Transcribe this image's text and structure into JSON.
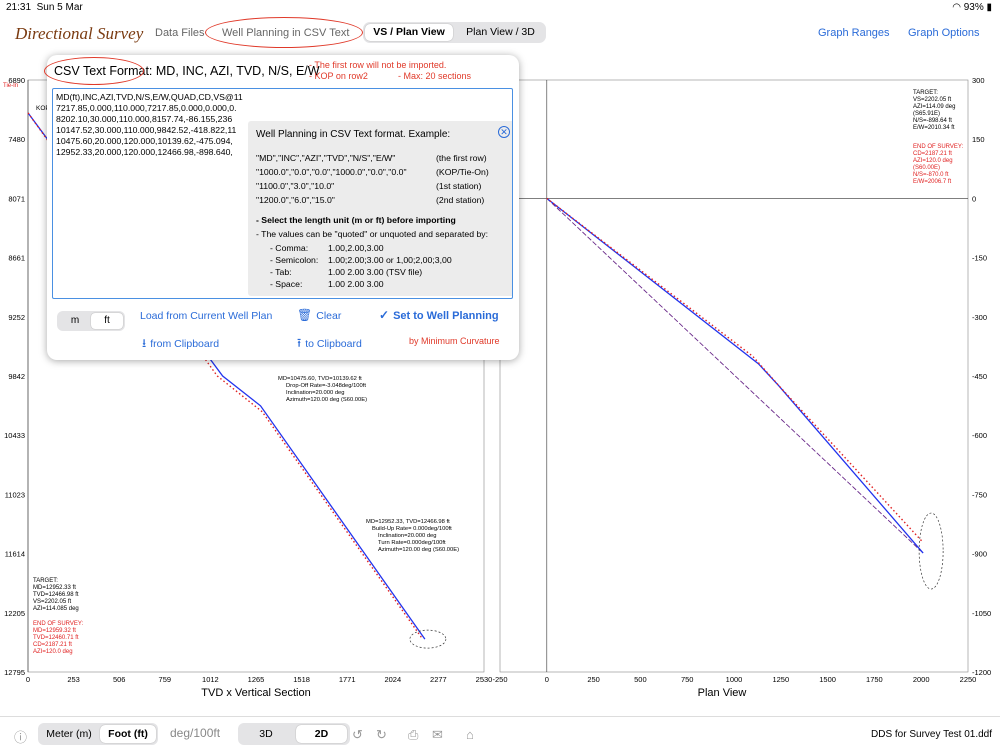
{
  "status": {
    "time": "21:31",
    "date": "Sun 5 Mar",
    "battery": "93%"
  },
  "header": {
    "app_title": "Directional Survey",
    "data_files": "Data Files",
    "well_planning_csv": "Well Planning in CSV Text",
    "vs_plan_view": "VS / Plan View",
    "plan_view_3d": "Plan View / 3D",
    "graph_ranges": "Graph Ranges",
    "graph_options": "Graph Options"
  },
  "popover": {
    "title": "CSV Text Format: MD, INC, AZI, TVD, N/S, E/W",
    "note1": "- The first row will not be imported.",
    "note2": "- KOP on row2",
    "note3": "- Max: 20 sections",
    "csv_lines": [
      "MD(ft),INC,AZI,TVD,N/S,E/W,QUAD,CD,VS@11",
      "7217.85,0.000,110.000,7217.85,0.000,0.000,0.",
      "8202.10,30.000,110.000,8157.74,-86.155,236",
      "10147.52,30.000,110.000,9842.52,-418.822,11",
      "10475.60,20.000,120.000,10139.62,-475.094,",
      "12952.33,20.000,120.000,12466.98,-898.640,"
    ],
    "example": {
      "title": "Well Planning in CSV Text format. Example:",
      "rows": [
        {
          "csv": "\"MD\",\"INC\",\"AZI\",\"TVD\",\"N/S\",\"E/W\"",
          "note": "(the first row)"
        },
        {
          "csv": "\"1000.0\",\"0.0\",\"0.0\",\"1000.0\",\"0.0\",\"0.0\"",
          "note": "(KOP/Tie-On)"
        },
        {
          "csv": "\"1100.0\",\"3.0\",\"10.0\"",
          "note": "(1st station)"
        },
        {
          "csv": "\"1200.0\",\"6.0\",\"15.0\"",
          "note": "(2nd station)"
        }
      ],
      "unit_note": "- Select the length unit (m or ft) before importing",
      "sep_note": "- The values can be \"quoted\" or unquoted and separated by:",
      "separators": [
        {
          "label": "- Comma:",
          "value": "1.00,2.00,3.00"
        },
        {
          "label": "- Semicolon:",
          "value": "1.00;2.00;3.00  or  1,00;2,00;3,00"
        },
        {
          "label": "- Tab:",
          "value": "1.00   2.00   3.00    (TSV file)"
        },
        {
          "label": "- Space:",
          "value": "1.00 2.00 3.00"
        }
      ]
    },
    "unit_m": "m",
    "unit_ft": "ft",
    "load_current": "Load from Current Well Plan",
    "clear": "Clear",
    "set_to_well": "Set to Well Planning",
    "from_clipboard": "from Clipboard",
    "to_clipboard": "to Clipboard",
    "min_curvature": "by Minimum Curvature"
  },
  "vs_chart": {
    "title": "TVD x Vertical Section",
    "y_ticks": [
      "6890",
      "7480",
      "8071",
      "8661",
      "9252",
      "9842",
      "10433",
      "11023",
      "11614",
      "12205",
      "12795"
    ],
    "x_ticks": [
      "0",
      "253",
      "506",
      "759",
      "1012",
      "1265",
      "1518",
      "1771",
      "2024",
      "2277",
      "2530"
    ],
    "y_range": [
      6890,
      12795
    ],
    "x_range": [
      0,
      2530
    ],
    "left_stub": "Tie-In",
    "kop_stub": "KOP",
    "ann_mid": [
      "MD=10475.60, TVD=10139.62 ft",
      "Drop-Off Rate=-3.048deg/100ft",
      "Inclination=20.000 deg",
      "Azimuth=120.00 deg (S60.00E)"
    ],
    "ann_end": [
      "MD=12952.33, TVD=12466.98 ft",
      "Build-Up Rate= 0.000deg/100ft",
      "Inclination=20.000 deg",
      "Turn Rate=0.000deg/100ft",
      "Azimuth=120.00 deg (S60.00E)"
    ],
    "target": [
      "TARGET:",
      "MD=12952.33 ft",
      "TVD=12466.98 ft",
      "VS=2202.05 ft",
      "AZI=114.085 deg"
    ],
    "end_survey": [
      "END OF SURVEY:",
      "MD=12959.32 ft",
      "TVD=12460.71 ft",
      "CD=2187.21 ft",
      "AZI=120.0 deg"
    ]
  },
  "plan_chart": {
    "title": "Plan View",
    "y_ticks": [
      "300",
      "150",
      "0",
      "-150",
      "-300",
      "-450",
      "-600",
      "-750",
      "-900",
      "-1050",
      "-1200"
    ],
    "x_ticks": [
      "-250",
      "0",
      "250",
      "500",
      "750",
      "1000",
      "1250",
      "1500",
      "1750",
      "2000",
      "2250"
    ],
    "north": "N",
    "target": [
      "TARGET:",
      "VS=2202.05 ft",
      "AZI=114.09 deg",
      "(S65.91E)",
      "N/S=-898.64 ft",
      "E/W=2010.34 ft"
    ],
    "end_survey": [
      "END OF SURVEY:",
      "CD=2187.21 ft",
      "AZI=120.0 deg",
      "(S60.00E)",
      "N/S=-870.0 ft",
      "E/W=2006.7 ft"
    ]
  },
  "chart_data": [
    {
      "type": "line",
      "title": "TVD x Vertical Section",
      "xlabel": "",
      "ylabel": "",
      "xlim": [
        0,
        2530
      ],
      "ylim": [
        12795,
        6890
      ],
      "series": [
        {
          "values": [
            [
              0,
              7217.85
            ],
            [
              1080,
              9842.52
            ],
            [
              1290,
              10139.62
            ],
            [
              2202,
              12466.98
            ]
          ]
        },
        {
          "values": [
            [
              0,
              7217.85
            ],
            [
              1050,
              9842
            ],
            [
              1300,
              10200
            ],
            [
              2187,
              12460.71
            ]
          ]
        }
      ]
    },
    {
      "type": "line",
      "title": "Plan View",
      "xlabel": "",
      "ylabel": "",
      "xlim": [
        -250,
        2250
      ],
      "ylim": [
        -1200,
        300
      ],
      "series": [
        {
          "values": [
            [
              0,
              0
            ],
            [
              1130,
              -418.8
            ],
            [
              1240,
              -475.1
            ],
            [
              2010.3,
              -898.6
            ]
          ]
        },
        {
          "values": [
            [
              0,
              0
            ],
            [
              1100,
              -400
            ],
            [
              1250,
              -480
            ],
            [
              2006.7,
              -870
            ]
          ]
        },
        {
          "values": [
            [
              0,
              0
            ],
            [
              2010.3,
              -898.6
            ]
          ]
        }
      ]
    }
  ],
  "colors": {
    "plan": "#2233ee",
    "actual": "#e02020",
    "target": "#6a2a8a",
    "accent": "#2a6bd8"
  },
  "bottom": {
    "meter": "Meter (m)",
    "foot": "Foot (ft)",
    "deg_unit": "deg/100ft",
    "btn_3d": "3D",
    "btn_2d": "2D",
    "file_name": "DDS for Survey Test 01.ddf"
  }
}
